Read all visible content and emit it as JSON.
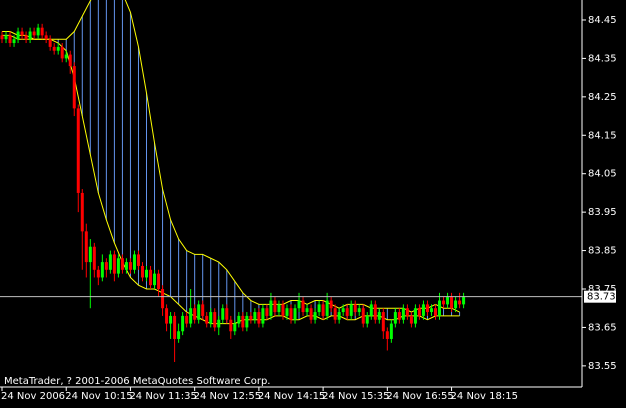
{
  "chart_data": {
    "type": "candlestick",
    "watermark": "MetaTrader, ? 2001-2006 MetaQuotes Software Corp.",
    "open": [
      84.41,
      84.4,
      84.41,
      84.39,
      84.4,
      84.42,
      84.41,
      84.4,
      84.42,
      84.41,
      84.43,
      84.41,
      84.4,
      84.38,
      84.37,
      84.38,
      84.35,
      84.36,
      84.33,
      84.22,
      84.0,
      83.9,
      83.82,
      83.86,
      83.8,
      83.78,
      83.82,
      83.8,
      83.84,
      83.79,
      83.83,
      83.8,
      83.82,
      83.8,
      83.84,
      83.81,
      83.78,
      83.8,
      83.76,
      83.79,
      83.75,
      83.7,
      83.66,
      83.68,
      83.62,
      83.64,
      83.68,
      83.66,
      83.7,
      83.67,
      83.71,
      83.68,
      83.66,
      83.69,
      83.65,
      83.67,
      83.7,
      83.67,
      83.64,
      83.66,
      83.68,
      83.65,
      83.68,
      83.67,
      83.69,
      83.66,
      83.7,
      83.68,
      83.72,
      83.69,
      83.71,
      83.68,
      83.7,
      83.67,
      83.7,
      83.72,
      83.69,
      83.7,
      83.67,
      83.69,
      83.71,
      83.68,
      83.72,
      83.7,
      83.67,
      83.69,
      83.7,
      83.68,
      83.71,
      83.69,
      83.7,
      83.66,
      83.68,
      83.71,
      83.67,
      83.69,
      83.64,
      83.62,
      83.66,
      83.69,
      83.67,
      83.7,
      83.68,
      83.66,
      83.7,
      83.68,
      83.71,
      83.69,
      83.7,
      83.68,
      83.72,
      83.71,
      83.73,
      83.7,
      83.72,
      83.71
    ],
    "high": [
      84.42,
      84.42,
      84.42,
      84.41,
      84.43,
      84.43,
      84.42,
      84.43,
      84.43,
      84.44,
      84.44,
      84.42,
      84.41,
      84.39,
      84.39,
      84.39,
      84.37,
      84.37,
      84.34,
      84.23,
      84.01,
      83.92,
      83.88,
      83.87,
      83.81,
      83.84,
      83.83,
      83.85,
      83.85,
      83.84,
      83.84,
      83.83,
      83.83,
      83.85,
      83.85,
      83.82,
      83.81,
      83.81,
      83.8,
      83.8,
      83.76,
      83.71,
      83.69,
      83.69,
      83.66,
      83.69,
      83.69,
      83.75,
      83.71,
      83.72,
      83.72,
      83.69,
      83.7,
      83.7,
      83.68,
      83.71,
      83.71,
      83.68,
      83.67,
      83.69,
      83.69,
      83.69,
      83.69,
      83.7,
      83.7,
      83.71,
      83.71,
      83.74,
      83.73,
      83.72,
      83.72,
      83.71,
      83.71,
      83.71,
      83.74,
      83.73,
      83.71,
      83.71,
      83.7,
      83.72,
      83.72,
      83.74,
      83.73,
      83.71,
      83.7,
      83.71,
      83.71,
      83.72,
      83.72,
      83.71,
      83.71,
      83.69,
      83.72,
      83.72,
      83.7,
      83.7,
      83.65,
      83.67,
      83.7,
      83.7,
      83.71,
      83.71,
      83.69,
      83.71,
      83.71,
      83.72,
      83.72,
      83.71,
      83.71,
      83.74,
      83.73,
      83.74,
      83.74,
      83.73,
      83.74,
      83.74
    ],
    "low": [
      84.39,
      84.39,
      84.38,
      84.38,
      84.39,
      84.4,
      84.39,
      84.39,
      84.4,
      84.4,
      84.4,
      84.39,
      84.37,
      84.36,
      84.36,
      84.34,
      84.34,
      84.31,
      84.2,
      83.95,
      83.8,
      83.78,
      83.7,
      83.78,
      83.76,
      83.77,
      83.78,
      83.79,
      83.77,
      83.78,
      83.79,
      83.79,
      83.79,
      83.79,
      83.8,
      83.77,
      83.77,
      83.75,
      83.75,
      83.73,
      83.68,
      83.64,
      83.62,
      83.56,
      83.61,
      83.63,
      83.65,
      83.65,
      83.66,
      83.66,
      83.67,
      83.65,
      83.65,
      83.64,
      83.63,
      83.66,
      83.66,
      83.62,
      83.63,
      83.65,
      83.64,
      83.64,
      83.66,
      83.66,
      83.65,
      83.65,
      83.67,
      83.67,
      83.68,
      83.68,
      83.67,
      83.67,
      83.66,
      83.66,
      83.69,
      83.68,
      83.68,
      83.66,
      83.66,
      83.68,
      83.67,
      83.67,
      83.69,
      83.66,
      83.66,
      83.68,
      83.67,
      83.67,
      83.68,
      83.68,
      83.65,
      83.65,
      83.67,
      83.66,
      83.66,
      83.62,
      83.59,
      83.61,
      83.65,
      83.66,
      83.66,
      83.67,
      83.65,
      83.65,
      83.67,
      83.67,
      83.68,
      83.68,
      83.67,
      83.67,
      83.7,
      83.7,
      83.69,
      83.69,
      83.7,
      83.7
    ],
    "close": [
      84.4,
      84.41,
      84.39,
      84.4,
      84.42,
      84.41,
      84.4,
      84.42,
      84.41,
      84.43,
      84.41,
      84.4,
      84.38,
      84.37,
      84.38,
      84.35,
      84.36,
      84.33,
      84.22,
      84.0,
      83.9,
      83.82,
      83.86,
      83.8,
      83.78,
      83.82,
      83.8,
      83.84,
      83.79,
      83.83,
      83.8,
      83.82,
      83.8,
      83.84,
      83.81,
      83.78,
      83.8,
      83.76,
      83.79,
      83.75,
      83.7,
      83.66,
      83.68,
      83.62,
      83.64,
      83.68,
      83.66,
      83.7,
      83.67,
      83.71,
      83.68,
      83.66,
      83.69,
      83.65,
      83.67,
      83.7,
      83.67,
      83.64,
      83.66,
      83.68,
      83.65,
      83.68,
      83.67,
      83.69,
      83.66,
      83.7,
      83.68,
      83.72,
      83.69,
      83.71,
      83.68,
      83.7,
      83.67,
      83.7,
      83.72,
      83.69,
      83.7,
      83.67,
      83.69,
      83.71,
      83.68,
      83.72,
      83.7,
      83.67,
      83.69,
      83.7,
      83.68,
      83.71,
      83.69,
      83.7,
      83.66,
      83.68,
      83.71,
      83.67,
      83.69,
      83.64,
      83.62,
      83.66,
      83.69,
      83.67,
      83.7,
      83.68,
      83.66,
      83.7,
      83.68,
      83.71,
      83.69,
      83.7,
      83.68,
      83.72,
      83.71,
      83.73,
      83.7,
      83.72,
      83.71,
      83.73
    ],
    "up_color": "#00ff00",
    "down_color": "#ff0000",
    "bands": {
      "x": [
        0,
        2,
        4,
        6,
        8,
        10,
        12,
        14,
        16,
        18,
        20,
        22,
        24,
        26,
        28,
        30,
        32,
        34,
        36,
        38,
        40,
        42,
        44,
        46,
        48,
        50,
        52,
        54,
        56,
        58,
        60,
        62,
        64,
        66,
        68,
        70,
        72,
        74,
        76,
        78,
        80,
        82,
        84,
        86,
        88,
        90,
        92,
        94,
        96,
        98,
        100,
        102,
        104,
        106,
        108,
        110,
        112,
        114
      ],
      "upper": [
        84.42,
        84.42,
        84.41,
        84.41,
        84.4,
        84.4,
        84.4,
        84.4,
        84.4,
        84.42,
        84.46,
        84.5,
        84.53,
        84.54,
        84.54,
        84.52,
        84.47,
        84.38,
        84.26,
        84.13,
        84.01,
        83.93,
        83.88,
        83.85,
        83.84,
        83.84,
        83.83,
        83.82,
        83.8,
        83.77,
        83.74,
        83.72,
        83.71,
        83.71,
        83.71,
        83.71,
        83.72,
        83.72,
        83.71,
        83.72,
        83.72,
        83.71,
        83.7,
        83.71,
        83.71,
        83.71,
        83.7,
        83.7,
        83.7,
        83.7,
        83.7,
        83.69,
        83.7,
        83.7,
        83.71,
        83.7,
        83.7,
        83.69
      ],
      "lower": [
        84.41,
        84.41,
        84.4,
        84.4,
        84.4,
        84.4,
        84.4,
        84.39,
        84.37,
        84.3,
        84.2,
        84.1,
        84.0,
        83.93,
        83.87,
        83.82,
        83.78,
        83.76,
        83.75,
        83.75,
        83.74,
        83.73,
        83.71,
        83.69,
        83.68,
        83.67,
        83.66,
        83.66,
        83.66,
        83.66,
        83.67,
        83.67,
        83.67,
        83.67,
        83.68,
        83.68,
        83.67,
        83.67,
        83.68,
        83.68,
        83.67,
        83.68,
        83.68,
        83.67,
        83.67,
        83.68,
        83.68,
        83.68,
        83.67,
        83.67,
        83.68,
        83.68,
        83.68,
        83.67,
        83.68,
        83.68,
        83.68,
        83.68
      ],
      "line_color": "#ffff00",
      "hatch_color": "#6495ed",
      "hatch_color_down": "#ff0000"
    },
    "last_price": 83.73,
    "ylim": [
      83.495,
      84.502
    ],
    "yticks": [
      84.45,
      84.35,
      84.25,
      84.15,
      84.05,
      83.95,
      83.85,
      83.75,
      83.65,
      83.55
    ],
    "xlim": [
      -0.5,
      144.5
    ],
    "xticks": [
      {
        "value": 0,
        "label": "24 Nov 2006"
      },
      {
        "value": 16,
        "label": "24 Nov 10:15"
      },
      {
        "value": 32,
        "label": "24 Nov 11:35"
      },
      {
        "value": 48,
        "label": "24 Nov 12:55"
      },
      {
        "value": 64,
        "label": "24 Nov 14:15"
      },
      {
        "value": 80,
        "label": "24 Nov 15:35"
      },
      {
        "value": 96,
        "label": "24 Nov 16:55"
      },
      {
        "value": 112,
        "label": "24 Nov 18:15"
      }
    ]
  }
}
